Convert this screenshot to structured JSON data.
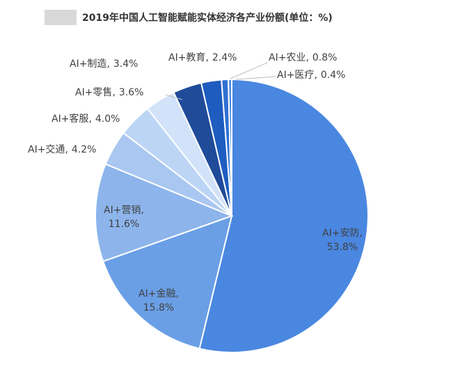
{
  "chart_data": {
    "type": "pie",
    "title": "2019年中国人工智能赋能实体经济各产业份额(单位：%)",
    "categories": [
      "AI+安防",
      "AI+金融",
      "AI+营销",
      "AI+交通",
      "AI+客服",
      "AI+零售",
      "AI+制造",
      "AI+教育",
      "AI+农业",
      "AI+医疗"
    ],
    "values": [
      53.8,
      15.8,
      11.6,
      4.2,
      4.0,
      3.6,
      3.4,
      2.4,
      0.8,
      0.4
    ],
    "value_labels": [
      "53.8%",
      "15.8%",
      "11.6%",
      "4.2%",
      "4.0%",
      "3.6%",
      "3.4%",
      "2.4%",
      "0.8%",
      "0.4%"
    ],
    "label_separator": ",",
    "colors": [
      "#4a87e0",
      "#6a9fe6",
      "#8db5ec",
      "#a9c7f1",
      "#bdd5f5",
      "#d2e2f9",
      "#1f4b99",
      "#1e5cc0",
      "#2f70d2",
      "#4a87e0"
    ]
  }
}
